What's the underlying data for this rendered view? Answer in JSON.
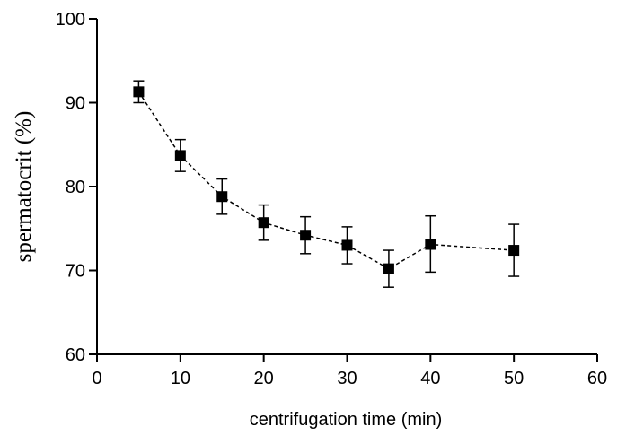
{
  "chart_data": {
    "type": "scatter",
    "title": "",
    "xlabel": "centrifugation time (min)",
    "ylabel": "spermatocrit (%)",
    "xlim": [
      0,
      60
    ],
    "ylim": [
      60,
      100
    ],
    "x_ticks": [
      0,
      10,
      20,
      30,
      40,
      50,
      60
    ],
    "y_ticks": [
      60,
      70,
      80,
      90,
      100
    ],
    "x_tick_labels": [
      "0",
      "10",
      "20",
      "30",
      "40",
      "50",
      "60"
    ],
    "y_tick_labels": [
      "60",
      "70",
      "80",
      "90",
      "100"
    ],
    "grid": false,
    "legend": "none",
    "line_style": "dashed",
    "marker": "square",
    "color": "#000000",
    "series": [
      {
        "x": [
          5,
          10,
          15,
          20,
          25,
          30,
          35,
          40,
          50
        ],
        "y": [
          91.3,
          83.7,
          78.8,
          75.7,
          74.2,
          73.0,
          70.2,
          73.1,
          72.4
        ],
        "error_upper": [
          92.6,
          85.6,
          80.9,
          77.8,
          76.4,
          75.2,
          72.4,
          76.5,
          75.5
        ],
        "error_lower": [
          90.0,
          81.8,
          76.7,
          73.6,
          72.0,
          70.8,
          68.0,
          69.8,
          69.3
        ]
      }
    ]
  }
}
